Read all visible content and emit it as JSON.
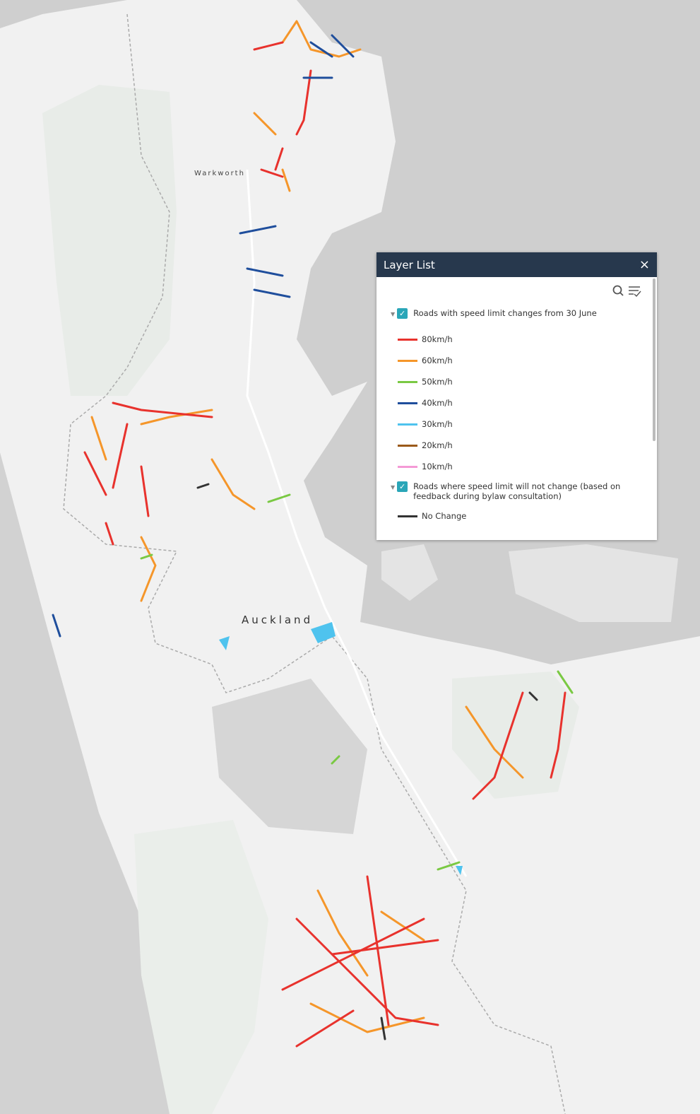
{
  "map": {
    "place_labels": [
      "Warkworth",
      "Auckland"
    ]
  },
  "layer_list": {
    "title": "Layer List",
    "layers": [
      {
        "name": "Roads with speed limit changes from 30 June",
        "legend": [
          {
            "label": "80km/h",
            "color": "#e8322d"
          },
          {
            "label": "60km/h",
            "color": "#f5962a"
          },
          {
            "label": "50km/h",
            "color": "#7ac943"
          },
          {
            "label": "40km/h",
            "color": "#1f4e9c"
          },
          {
            "label": "30km/h",
            "color": "#4fc3ee"
          },
          {
            "label": "20km/h",
            "color": "#9b5a1a"
          },
          {
            "label": "10km/h",
            "color": "#f49ad6"
          }
        ]
      },
      {
        "name": "Roads where speed limit will not change (based on feedback during bylaw consultation)",
        "legend": [
          {
            "label": "No Change",
            "color": "#333333"
          }
        ]
      }
    ]
  }
}
